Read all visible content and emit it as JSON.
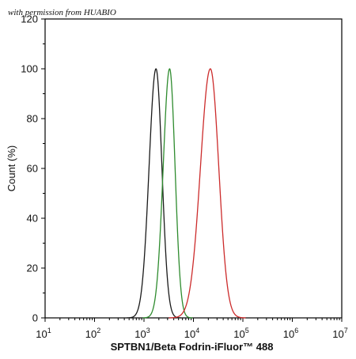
{
  "watermark": "with permission from HUABIO",
  "chart_data": {
    "type": "line",
    "title": "",
    "xlabel": "SPTBN1/Beta Fodrin-iFluor™ 488",
    "ylabel": "Count (%)",
    "x_scale": "log",
    "xlim": [
      10,
      10000000
    ],
    "ylim": [
      0,
      120
    ],
    "x_ticks": [
      {
        "base": "10",
        "exp": "1"
      },
      {
        "base": "10",
        "exp": "2"
      },
      {
        "base": "10",
        "exp": "3"
      },
      {
        "base": "10",
        "exp": "4"
      },
      {
        "base": "10",
        "exp": "5"
      },
      {
        "base": "10",
        "exp": "6"
      },
      {
        "base": "10",
        "exp": "7"
      }
    ],
    "y_ticks": [
      "0",
      "20",
      "40",
      "60",
      "80",
      "100",
      "120"
    ],
    "series": [
      {
        "color": "#1a1a1a",
        "peak_x": 1750,
        "peak_y": 100,
        "sigma_left_decades": 0.14,
        "sigma_right_decades": 0.12
      },
      {
        "color": "#2e8b2e",
        "peak_x": 3300,
        "peak_y": 100,
        "sigma_left_decades": 0.13,
        "sigma_right_decades": 0.11
      },
      {
        "color": "#cc2b2b",
        "peak_x": 22000,
        "peak_y": 100,
        "sigma_left_decades": 0.2,
        "sigma_right_decades": 0.17
      }
    ]
  }
}
